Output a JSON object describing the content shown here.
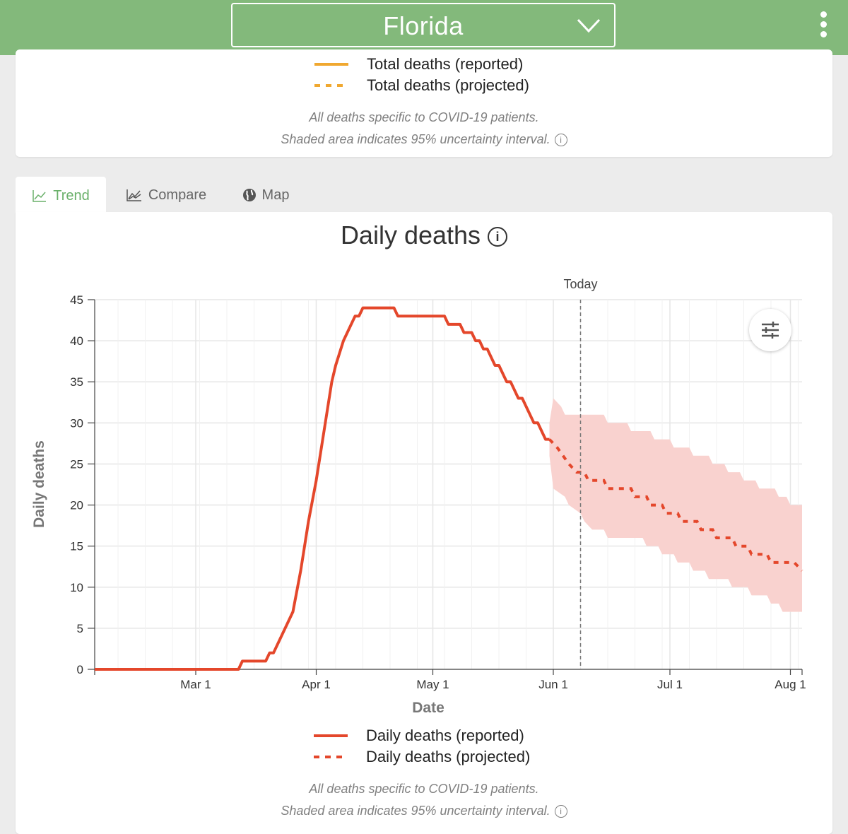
{
  "header": {
    "state_value": "Florida"
  },
  "top_card": {
    "legend": [
      {
        "label": "Total deaths (reported)",
        "style": "solid",
        "color": "#f0a830"
      },
      {
        "label": "Total deaths (projected)",
        "style": "dashed",
        "color": "#f0a830"
      }
    ],
    "note_line1": "All deaths specific to COVID-19 patients.",
    "note_line2": "Shaded area indicates 95% uncertainty interval."
  },
  "tabs": [
    {
      "label": "Trend",
      "icon": "line-chart-icon",
      "active": true
    },
    {
      "label": "Compare",
      "icon": "compare-chart-icon",
      "active": false
    },
    {
      "label": "Map",
      "icon": "globe-icon",
      "active": false
    }
  ],
  "main_card": {
    "legend": [
      {
        "label": "Daily deaths (reported)",
        "style": "solid",
        "color": "#e4472b"
      },
      {
        "label": "Daily deaths (projected)",
        "style": "dashed",
        "color": "#e4472b"
      }
    ],
    "note_line1": "All deaths specific to COVID-19 patients.",
    "note_line2": "Shaded area indicates 95% uncertainty interval."
  },
  "chart_data": {
    "type": "line",
    "title": "Daily deaths",
    "xlabel": "Date",
    "ylabel": "Daily deaths",
    "ylim": [
      0,
      45
    ],
    "yticks": [
      0,
      5,
      10,
      15,
      20,
      25,
      30,
      35,
      40,
      45
    ],
    "xticks": [
      "Mar 1",
      "Apr 1",
      "May 1",
      "Jun 1",
      "Jul 1",
      "Aug 1"
    ],
    "xrange": [
      "2020-02-04",
      "2020-08-04"
    ],
    "today": {
      "label": "Today",
      "date": "2020-06-08"
    },
    "grid": true,
    "colors": {
      "line": "#e4472b",
      "band": "#f9d2cf"
    },
    "series": [
      {
        "name": "Daily deaths (reported)",
        "style": "solid",
        "points": [
          [
            "2020-02-04",
            0
          ],
          [
            "2020-03-12",
            0
          ],
          [
            "2020-03-13",
            1
          ],
          [
            "2020-03-19",
            1
          ],
          [
            "2020-03-20",
            2
          ],
          [
            "2020-03-21",
            2
          ],
          [
            "2020-03-26",
            7
          ],
          [
            "2020-03-28",
            12
          ],
          [
            "2020-03-30",
            18
          ],
          [
            "2020-04-01",
            23
          ],
          [
            "2020-04-03",
            29
          ],
          [
            "2020-04-05",
            35
          ],
          [
            "2020-04-06",
            37
          ],
          [
            "2020-04-08",
            40
          ],
          [
            "2020-04-11",
            43
          ],
          [
            "2020-04-12",
            43
          ],
          [
            "2020-04-13",
            44
          ],
          [
            "2020-04-21",
            44
          ],
          [
            "2020-04-22",
            43
          ],
          [
            "2020-05-04",
            43
          ],
          [
            "2020-05-05",
            42
          ],
          [
            "2020-05-08",
            42
          ],
          [
            "2020-05-09",
            41
          ],
          [
            "2020-05-11",
            41
          ],
          [
            "2020-05-12",
            40
          ],
          [
            "2020-05-13",
            40
          ],
          [
            "2020-05-14",
            39
          ],
          [
            "2020-05-15",
            39
          ],
          [
            "2020-05-17",
            37
          ],
          [
            "2020-05-18",
            37
          ],
          [
            "2020-05-20",
            35
          ],
          [
            "2020-05-21",
            35
          ],
          [
            "2020-05-22",
            34
          ],
          [
            "2020-05-23",
            33
          ],
          [
            "2020-05-24",
            33
          ],
          [
            "2020-05-26",
            31
          ],
          [
            "2020-05-27",
            30
          ],
          [
            "2020-05-28",
            30
          ],
          [
            "2020-05-30",
            28
          ],
          [
            "2020-05-31",
            28
          ]
        ]
      },
      {
        "name": "Daily deaths (projected)",
        "style": "dashed",
        "points": [
          [
            "2020-05-31",
            28
          ],
          [
            "2020-06-02",
            27
          ],
          [
            "2020-06-05",
            25
          ],
          [
            "2020-06-07",
            24
          ],
          [
            "2020-06-09",
            24
          ],
          [
            "2020-06-10",
            23
          ],
          [
            "2020-06-14",
            23
          ],
          [
            "2020-06-15",
            22
          ],
          [
            "2020-06-21",
            22
          ],
          [
            "2020-06-22",
            21
          ],
          [
            "2020-06-25",
            21
          ],
          [
            "2020-06-26",
            20
          ],
          [
            "2020-06-29",
            20
          ],
          [
            "2020-06-30",
            19
          ],
          [
            "2020-07-03",
            19
          ],
          [
            "2020-07-04",
            18
          ],
          [
            "2020-07-08",
            18
          ],
          [
            "2020-07-09",
            17
          ],
          [
            "2020-07-12",
            17
          ],
          [
            "2020-07-13",
            16
          ],
          [
            "2020-07-17",
            16
          ],
          [
            "2020-07-18",
            15
          ],
          [
            "2020-07-21",
            15
          ],
          [
            "2020-07-22",
            14
          ],
          [
            "2020-07-26",
            14
          ],
          [
            "2020-07-27",
            13
          ],
          [
            "2020-08-02",
            13
          ],
          [
            "2020-08-04",
            12
          ]
        ]
      }
    ],
    "uncertainty_band": {
      "upper": [
        [
          "2020-05-31",
          30
        ],
        [
          "2020-06-01",
          33
        ],
        [
          "2020-06-03",
          32
        ],
        [
          "2020-06-04",
          31
        ],
        [
          "2020-06-14",
          31
        ],
        [
          "2020-06-15",
          30
        ],
        [
          "2020-06-20",
          30
        ],
        [
          "2020-06-21",
          29
        ],
        [
          "2020-06-26",
          29
        ],
        [
          "2020-06-27",
          28
        ],
        [
          "2020-07-01",
          28
        ],
        [
          "2020-07-02",
          27
        ],
        [
          "2020-07-06",
          27
        ],
        [
          "2020-07-07",
          26
        ],
        [
          "2020-07-11",
          26
        ],
        [
          "2020-07-12",
          25
        ],
        [
          "2020-07-15",
          25
        ],
        [
          "2020-07-16",
          24
        ],
        [
          "2020-07-19",
          24
        ],
        [
          "2020-07-20",
          23
        ],
        [
          "2020-07-23",
          23
        ],
        [
          "2020-07-24",
          22
        ],
        [
          "2020-07-28",
          22
        ],
        [
          "2020-07-29",
          21
        ],
        [
          "2020-07-31",
          21
        ],
        [
          "2020-08-01",
          20
        ],
        [
          "2020-08-04",
          20
        ]
      ],
      "lower": [
        [
          "2020-05-31",
          26
        ],
        [
          "2020-06-01",
          22
        ],
        [
          "2020-06-04",
          21
        ],
        [
          "2020-06-05",
          20
        ],
        [
          "2020-06-08",
          19
        ],
        [
          "2020-06-09",
          18
        ],
        [
          "2020-06-11",
          17
        ],
        [
          "2020-06-14",
          17
        ],
        [
          "2020-06-15",
          16
        ],
        [
          "2020-06-24",
          16
        ],
        [
          "2020-06-25",
          15
        ],
        [
          "2020-06-28",
          15
        ],
        [
          "2020-06-29",
          14
        ],
        [
          "2020-07-02",
          14
        ],
        [
          "2020-07-03",
          13
        ],
        [
          "2020-07-06",
          13
        ],
        [
          "2020-07-07",
          12
        ],
        [
          "2020-07-10",
          12
        ],
        [
          "2020-07-11",
          11
        ],
        [
          "2020-07-16",
          11
        ],
        [
          "2020-07-17",
          10
        ],
        [
          "2020-07-21",
          10
        ],
        [
          "2020-07-22",
          9
        ],
        [
          "2020-07-26",
          9
        ],
        [
          "2020-07-27",
          8
        ],
        [
          "2020-07-29",
          8
        ],
        [
          "2020-07-30",
          7
        ],
        [
          "2020-08-04",
          7
        ]
      ]
    }
  }
}
